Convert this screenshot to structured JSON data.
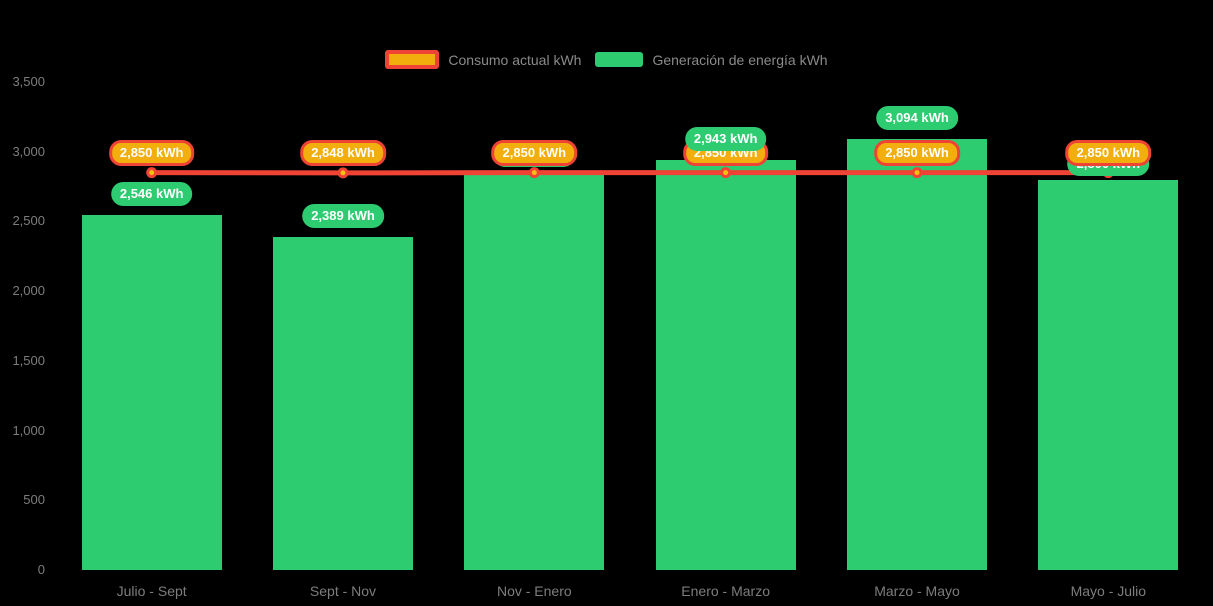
{
  "chart_data": {
    "type": "bar",
    "title": "",
    "categories": [
      "Julio - Sept",
      "Sept - Nov",
      "Nov - Enero",
      "Enero - Marzo",
      "Marzo - Mayo",
      "Mayo - Julio"
    ],
    "series": [
      {
        "name": "Consumo actual kWh",
        "type": "line",
        "values": [
          2850,
          2848,
          2850,
          2850,
          2850,
          2850
        ],
        "labels": [
          "2,850 kWh",
          "2,848 kWh",
          "2,850 kWh",
          "2,850 kWh",
          "2,850 kWh",
          "2,850 kWh"
        ],
        "color": "#ef4335",
        "label_bg": "#f1ae0c",
        "label_border": "#ef4335",
        "marker_fill": "#f6c10e"
      },
      {
        "name": "Generación de energía kWh",
        "type": "bar",
        "values": [
          2546,
          2389,
          2850,
          2943,
          3094,
          2800
        ],
        "labels": [
          "2,546 kWh",
          "2,389 kWh",
          "2,850 kWh",
          "2,943 kWh",
          "3,094 kWh",
          "2,800 kWh"
        ],
        "color": "#2ecc71",
        "label_bg": "#2ecc71"
      }
    ],
    "ylim": [
      0,
      3500
    ],
    "yticks": [
      {
        "value": 0,
        "label": "0"
      },
      {
        "value": 500,
        "label": "500"
      },
      {
        "value": 1000,
        "label": "1,000"
      },
      {
        "value": 1500,
        "label": "1,500"
      },
      {
        "value": 2000,
        "label": "2,000"
      },
      {
        "value": 2500,
        "label": "2,500"
      },
      {
        "value": 3000,
        "label": "3,000"
      },
      {
        "value": 3500,
        "label": "3,500"
      }
    ],
    "grid": false,
    "legend_position": "top-center",
    "background": "#000000",
    "axis_text_color": "#7d7d7d",
    "legend_text_color": "#8a8a8a",
    "unit": "kWh"
  }
}
